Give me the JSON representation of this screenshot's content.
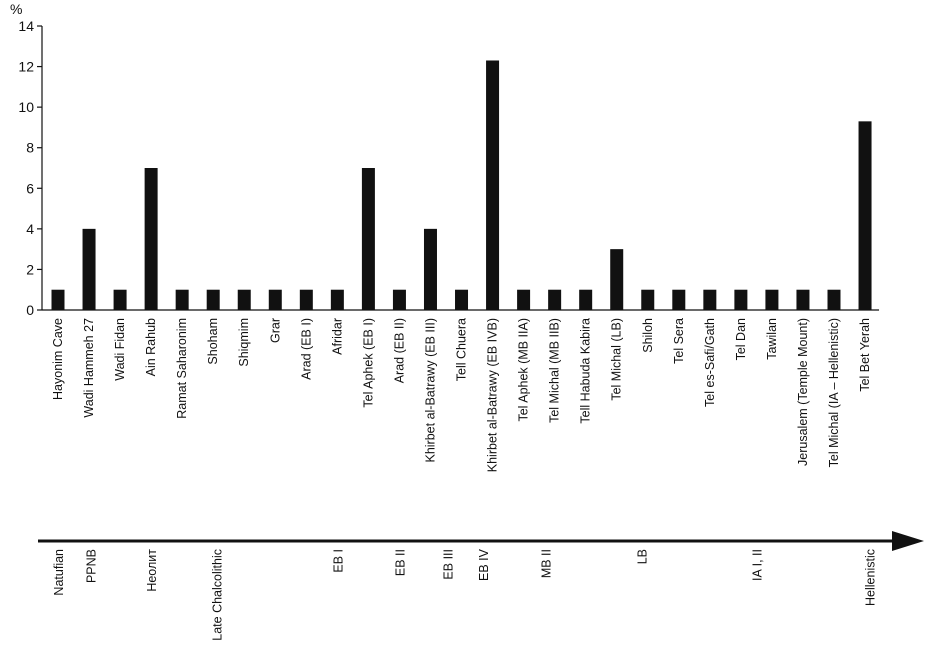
{
  "chart_data": {
    "type": "bar",
    "ylabel": "%",
    "ylim": [
      0,
      14
    ],
    "yticks": [
      0,
      2,
      4,
      6,
      8,
      10,
      12,
      14
    ],
    "grid": false,
    "categories": [
      "Hayonim Cave",
      "Wadi Hammeh 27",
      "Wadi Fidan",
      "Ain Rahub",
      "Ramat Saharonim",
      "Shoham",
      "Shiqmim",
      "Grar",
      "Arad (EB I)",
      "Afridar",
      "Tel Aphek (EB I)",
      "Arad (EB II)",
      "Khirbet al-Batrawy (EB III)",
      "Tell Chuera",
      "Khirbet al-Batrawy (EB IVB)",
      "Tel Aphek (MB IIA)",
      "Tel Michal (MB IIB)",
      "Tell Habuda Kabira",
      "Tel Michal (LB)",
      "Shiloh",
      "Tel Sera",
      "Tel es-Safi/Gath",
      "Tel Dan",
      "Tawilan",
      "Jerusalem (Temple Mount)",
      "Tel Michal (IA – Hellenistic)",
      "Tel Bet Yerah"
    ],
    "values": [
      1,
      4,
      1,
      7,
      1,
      1,
      1,
      1,
      1,
      1,
      7,
      1,
      4,
      1,
      12.3,
      1,
      1,
      1,
      3,
      1,
      1,
      1,
      1,
      1,
      1,
      1,
      9.3
    ],
    "bar_color": "#111111"
  },
  "timeline": {
    "periods": [
      {
        "label": "Natufian",
        "at": 0
      },
      {
        "label": "PPNB",
        "at": 1.05
      },
      {
        "label": "Неолит",
        "at": 3
      },
      {
        "label": "Late Chalcolithic",
        "at": 5.1
      },
      {
        "label": "EB I",
        "at": 9
      },
      {
        "label": "EB II",
        "at": 11
      },
      {
        "label": "EB III",
        "at": 12.55
      },
      {
        "label": "EB IV",
        "at": 13.7
      },
      {
        "label": "MB II",
        "at": 15.7
      },
      {
        "label": "LB",
        "at": 18.8
      },
      {
        "label": "IA  I, II",
        "at": 22.5
      },
      {
        "label": "Hellenistic",
        "at": 26.15
      }
    ]
  }
}
